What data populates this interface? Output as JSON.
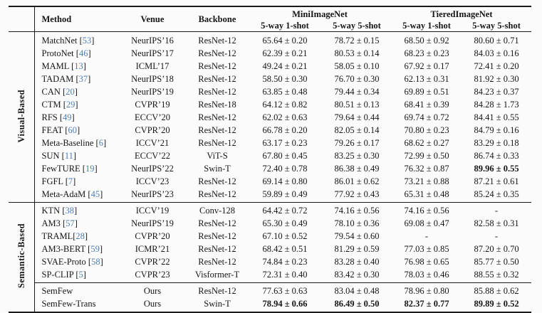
{
  "page": {
    "background": "#fbfbfb",
    "text_color": "#161616",
    "citation_color": "#4d7eb5",
    "rule_color": "#1a1a1a"
  },
  "table": {
    "headers": {
      "method": "Method",
      "venue": "Venue",
      "backbone": "Backbone",
      "dataset_groups": [
        {
          "label": "MiniImageNet",
          "sub": [
            "5-way 1-shot",
            "5-way 5-shot"
          ]
        },
        {
          "label": "TieredImageNet",
          "sub": [
            "5-way 1-shot",
            "5-way 5-shot"
          ]
        }
      ]
    },
    "sections": [
      {
        "label": "Visual-Based",
        "groups": [
          [
            {
              "method": "MatchNet",
              "ref": "53",
              "venue": "NeurIPS’16",
              "backbone": "ResNet-12",
              "scores": [
                "65.64 ± 0.20",
                "78.72 ± 0.15",
                "68.50 ± 0.92",
                "80.60 ± 0.71"
              ]
            },
            {
              "method": "ProtoNet",
              "ref": "46",
              "venue": "NeurIPS’17",
              "backbone": "ResNet-12",
              "scores": [
                "62.39 ± 0.21",
                "80.53 ± 0.14",
                "68.23 ± 0.23",
                "84.03 ± 0.16"
              ]
            },
            {
              "method": "MAML",
              "ref": "13",
              "venue": "ICML’17",
              "backbone": "ResNet-12",
              "scores": [
                "49.24 ± 0.21",
                "58.05 ± 0.10",
                "67.92 ± 0.17",
                "72.41 ± 0.20"
              ]
            },
            {
              "method": "TADAM",
              "ref": "37",
              "venue": "NeurIPS’18",
              "backbone": "ResNet-12",
              "scores": [
                "58.50 ± 0.30",
                "76.70 ± 0.30",
                "62.13 ± 0.31",
                "81.92 ± 0.30"
              ]
            },
            {
              "method": "CAN",
              "ref": "20",
              "venue": "NeurIPS’19",
              "backbone": "ResNet-12",
              "scores": [
                "63.85 ± 0.48",
                "79.44 ± 0.34",
                "69.89 ± 0.51",
                "84.23 ± 0.37"
              ]
            },
            {
              "method": "CTM",
              "ref": "29",
              "venue": "CVPR’19",
              "backbone": "ResNet-18",
              "scores": [
                "64.12 ± 0.82",
                "80.51 ± 0.13",
                "68.41 ± 0.39",
                "84.28 ± 1.73"
              ]
            },
            {
              "method": "RFS",
              "ref": "49",
              "venue": "ECCV’20",
              "backbone": "ResNet-12",
              "scores": [
                "62.02 ± 0.63",
                "79.64 ± 0.44",
                "69.74 ± 0.72",
                "84.41 ± 0.55"
              ]
            },
            {
              "method": "FEAT",
              "ref": "60",
              "venue": "CVPR’20",
              "backbone": "ResNet-12",
              "scores": [
                "66.78 ± 0.20",
                "82.05 ± 0.14",
                "70.80 ± 0.23",
                "84.79 ± 0.16"
              ]
            },
            {
              "method": "Meta-Baseline",
              "ref": "6",
              "venue": "ICCV’21",
              "backbone": "ResNet-12",
              "scores": [
                "63.17 ± 0.23",
                "79.26 ± 0.17",
                "68.62 ± 0.27",
                "83.29 ± 0.18"
              ]
            },
            {
              "method": "SUN",
              "ref": "11",
              "venue": "ECCV’22",
              "backbone": "ViT-S",
              "scores": [
                "67.80 ± 0.45",
                "83.25 ± 0.30",
                "72.99 ± 0.50",
                "86.74 ± 0.33"
              ]
            },
            {
              "method": "FewTURE",
              "ref": "19",
              "venue": "NeurIPS’22",
              "backbone": "Swin-T",
              "scores": [
                "72.40 ± 0.78",
                "86.38 ± 0.49",
                "76.32 ± 0.87",
                "89.96 ± 0.55"
              ],
              "bold": [
                false,
                false,
                false,
                true
              ]
            },
            {
              "method": "FGFL",
              "ref": "7",
              "venue": "ICCV’23",
              "backbone": "ResNet-12",
              "scores": [
                "69.14 ± 0.80",
                "86.01 ± 0.62",
                "73.21 ± 0.88",
                "87.21 ± 0.61"
              ]
            },
            {
              "method": "Meta-AdaM",
              "ref": "45",
              "venue": "NeurIPS’23",
              "backbone": "ResNet-12",
              "scores": [
                "59.89 ± 0.49",
                "77.92 ± 0.43",
                "65.31 ± 0.48",
                "85.24 ± 0.35"
              ]
            }
          ]
        ]
      },
      {
        "label": "Semantic-Based",
        "groups": [
          [
            {
              "method": "KTN",
              "ref": "38",
              "venue": "ICCV’19",
              "backbone": "Conv-128",
              "scores": [
                "64.42 ± 0.72",
                "74.16 ± 0.56",
                "74.16 ± 0.56",
                "-"
              ]
            },
            {
              "method": "AM3",
              "ref": "57",
              "venue": "NeurIPS’19",
              "backbone": "ResNet-12",
              "scores": [
                "65.30 ± 0.49",
                "78.10 ± 0.36",
                "69.08 ± 0.47",
                "82.58 ± 0.31"
              ]
            },
            {
              "method": "TRAML",
              "ref": "28",
              "ref_no_space": true,
              "venue": "CVPR’20",
              "backbone": "ResNet-12",
              "scores": [
                "67.10 ± 0.52",
                "79.54 ± 0.60",
                "-",
                "-"
              ]
            },
            {
              "method": "AM3-BERT",
              "ref": "59",
              "venue": "ICMR’21",
              "backbone": "ResNet-12",
              "scores": [
                "68.42 ± 0.51",
                "81.29 ± 0.59",
                "77.03 ± 0.85",
                "87.20 ± 0.70"
              ]
            },
            {
              "method": "SVAE-Proto",
              "ref": "58",
              "venue": "CVPR’22",
              "backbone": "ResNet-12",
              "scores": [
                "74.84 ± 0.23",
                "83.28 ± 0.40",
                "76.98 ± 0.65",
                "85.77 ± 0.50"
              ]
            },
            {
              "method": "SP-CLIP",
              "ref": "5",
              "venue": "CVPR’23",
              "backbone": "Visformer-T",
              "scores": [
                "72.31 ± 0.40",
                "83.42 ± 0.30",
                "78.03 ± 0.46",
                "88.55 ± 0.32"
              ]
            }
          ],
          [
            {
              "method": "SemFew",
              "venue": "Ours",
              "backbone": "ResNet-12",
              "scores": [
                "77.63 ± 0.63",
                "83.04 ± 0.48",
                "78.96 ± 0.80",
                "85.88 ± 0.62"
              ]
            },
            {
              "method": "SemFew-Trans",
              "venue": "Ours",
              "backbone": "Swin-T",
              "scores": [
                "78.94 ± 0.66",
                "86.49 ± 0.50",
                "82.37 ± 0.77",
                "89.89 ± 0.52"
              ],
              "bold": [
                true,
                true,
                true,
                true
              ]
            }
          ]
        ]
      }
    ]
  }
}
